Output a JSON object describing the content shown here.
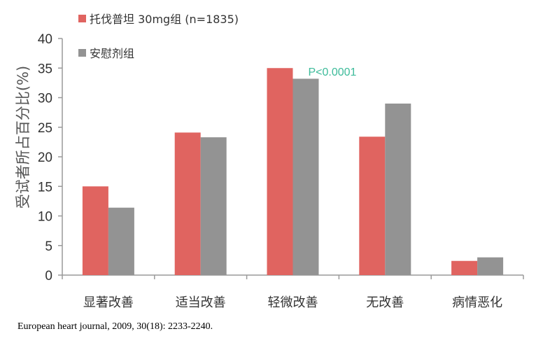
{
  "chart_data": {
    "type": "bar",
    "categories": [
      "显著改善",
      "适当改善",
      "轻微改善",
      "无改善",
      "病情恶化"
    ],
    "series": [
      {
        "name": "托伐普坦 30mg组 (n=1835)",
        "color": "#e06460",
        "values": [
          15.0,
          24.1,
          35.0,
          23.4,
          2.4
        ]
      },
      {
        "name": "安慰剂组",
        "color": "#939393",
        "values": [
          11.4,
          23.3,
          33.2,
          29.0,
          3.0
        ]
      }
    ],
    "title": "",
    "xlabel": "",
    "ylabel": "受试者所占百分比(%)",
    "ylim": [
      0,
      40
    ],
    "yticks": [
      0,
      5,
      10,
      15,
      20,
      25,
      30,
      35,
      40
    ],
    "grid": false,
    "legend_position": "top-left",
    "annotations": [
      {
        "text": "P<0.0001",
        "category": "轻微改善",
        "color": "#3dbb9a"
      }
    ]
  },
  "citation": "European heart journal, 2009, 30(18): 2233-2240."
}
